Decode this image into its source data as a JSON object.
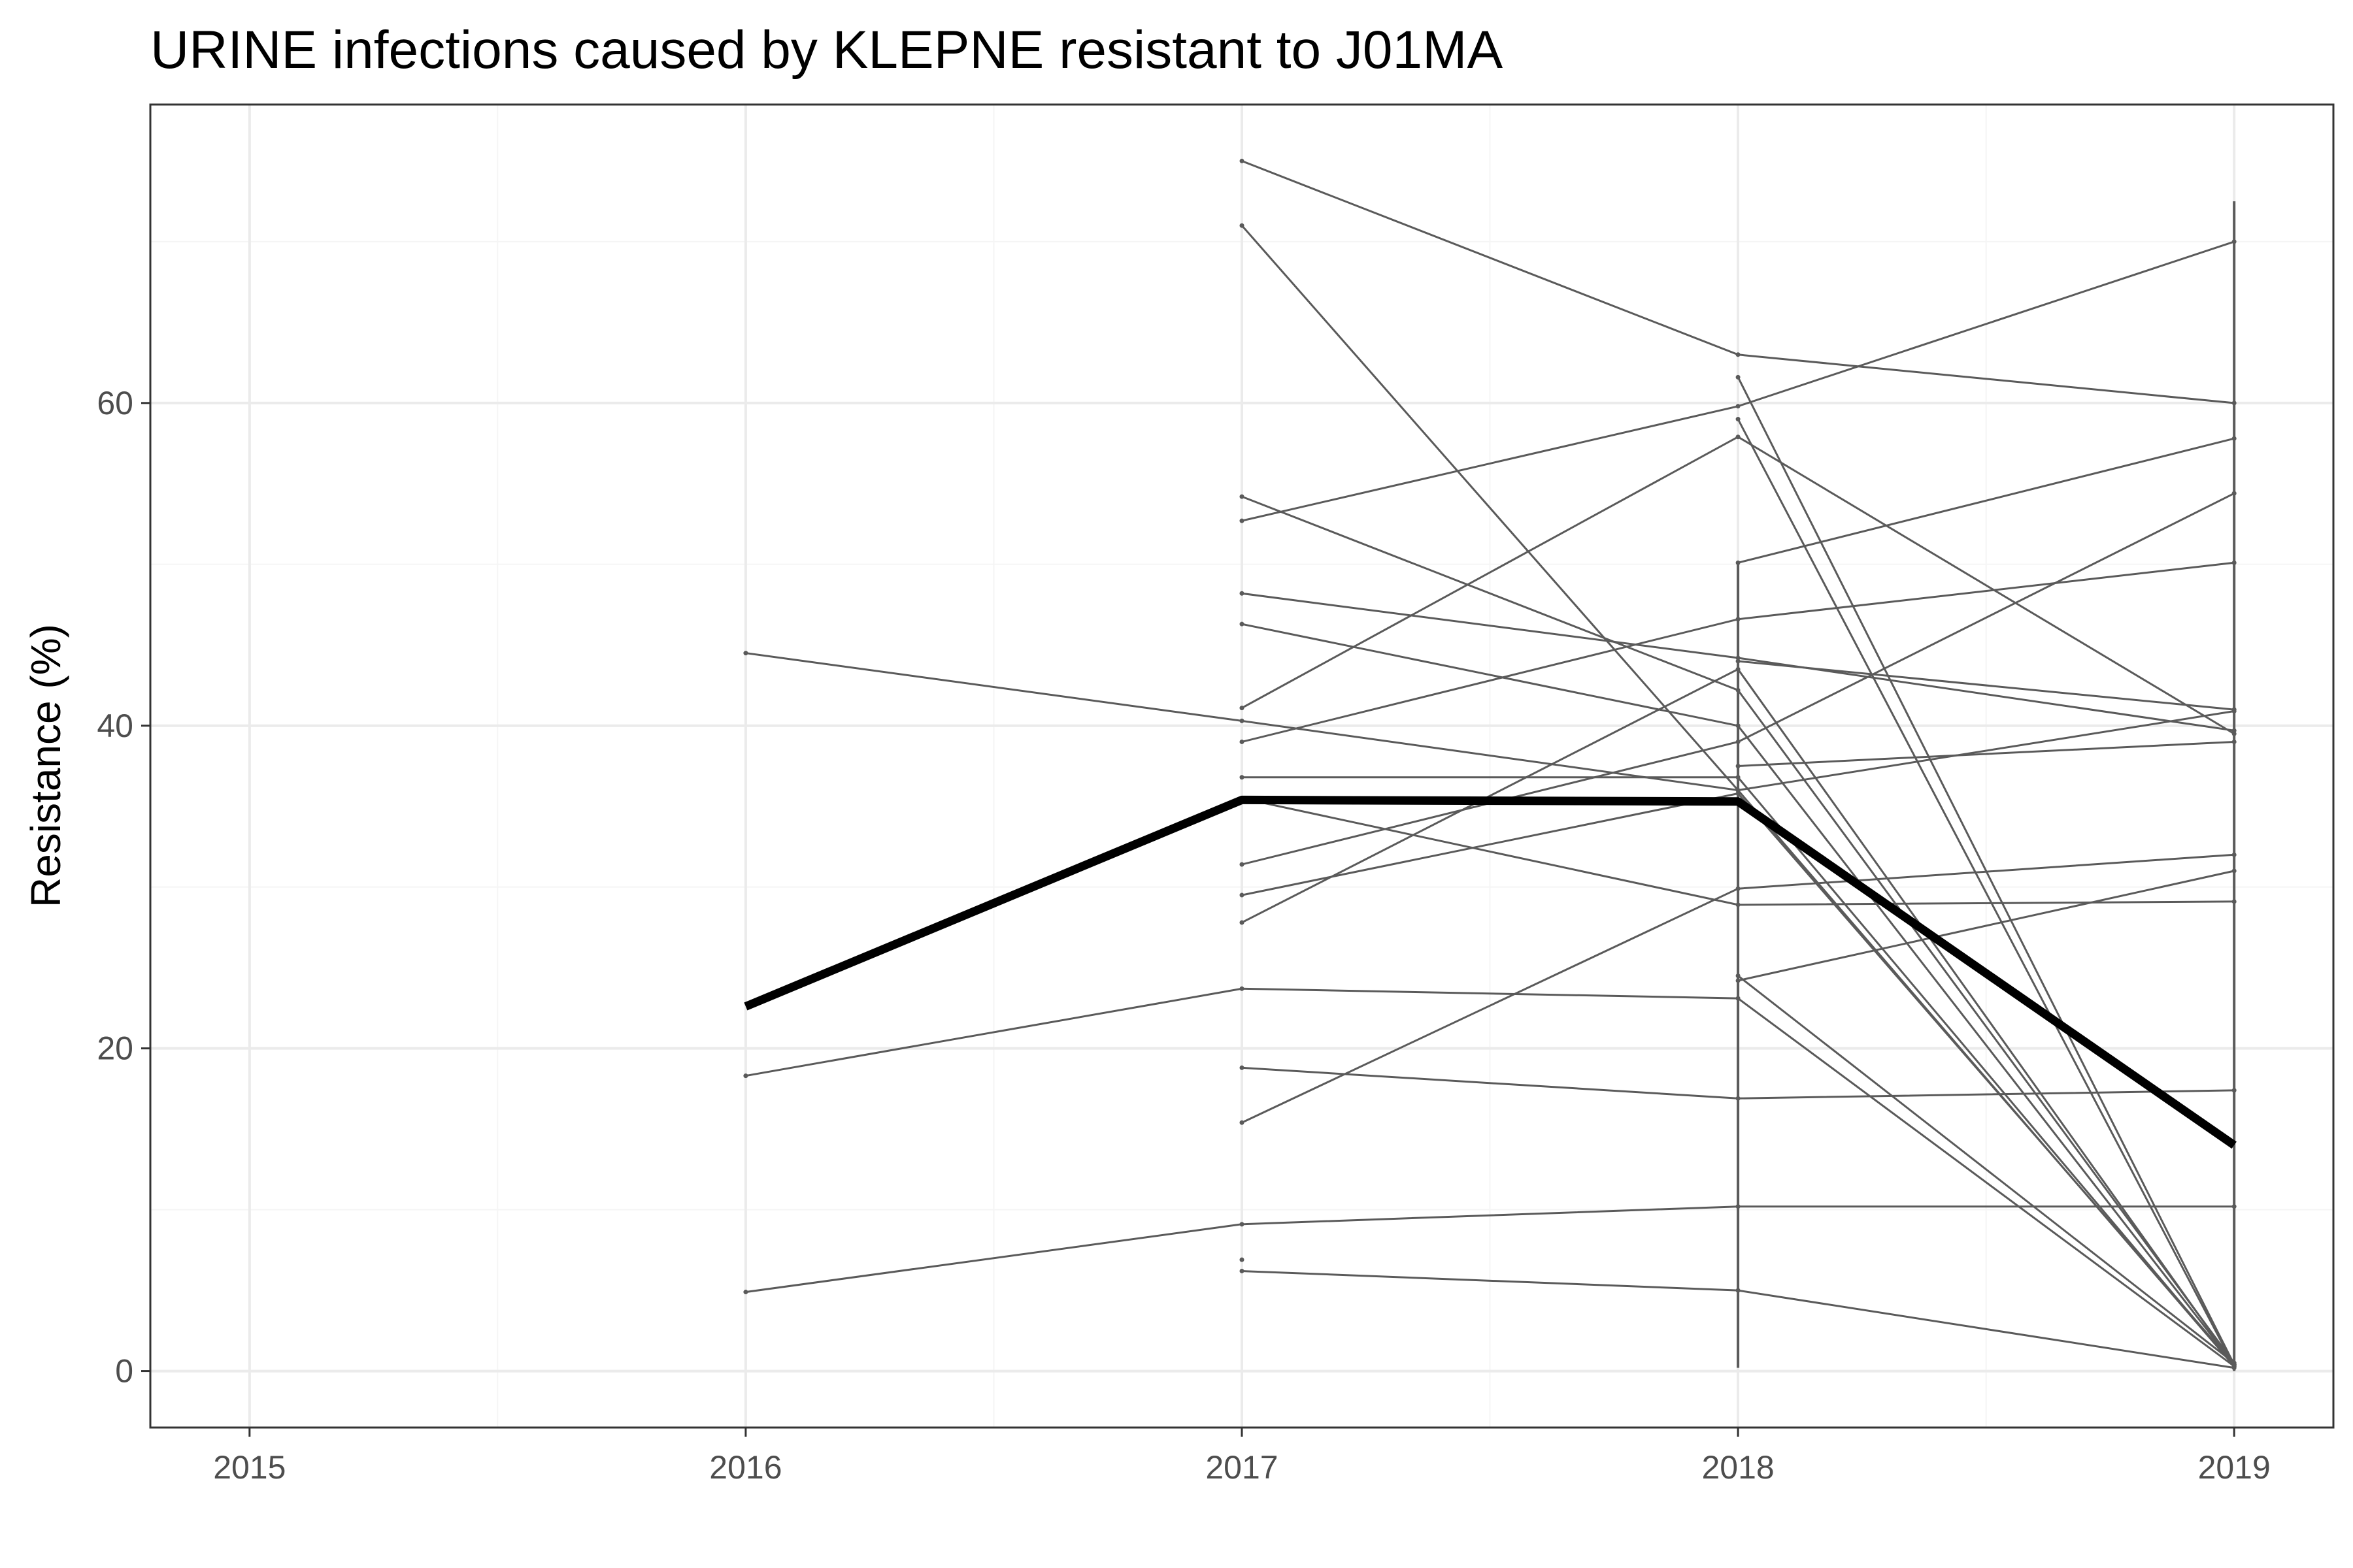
{
  "chart_data": {
    "type": "line",
    "title": "URINE infections caused by KLEPNE resistant to J01MA",
    "xlabel": "",
    "ylabel": "Resistance (%)",
    "xlim": [
      2014.8,
      2019.2
    ],
    "ylim": [
      -3.5,
      78.5
    ],
    "x_ticks": [
      2015,
      2016,
      2017,
      2018,
      2019
    ],
    "x_tick_labels": [
      "2015",
      "2016",
      "2017",
      "2018",
      "2019"
    ],
    "y_ticks": [
      0,
      20,
      40,
      60
    ],
    "y_tick_labels": [
      "0",
      "20",
      "40",
      "60"
    ],
    "grid": true,
    "legend": "none",
    "colors": {
      "series_line": "#5a5a5a",
      "summary_line": "#000000",
      "grid_major": "#ebebeb",
      "grid_minor": "#f5f5f5",
      "panel_border": "#333333",
      "tick_text": "#4d4d4d"
    },
    "series": [
      {
        "x": [
          2016,
          2017,
          2018,
          2019
        ],
        "y": [
          44.5,
          40.3,
          36.0,
          40.9
        ]
      },
      {
        "x": [
          2016,
          2017,
          2018,
          2019
        ],
        "y": [
          18.3,
          23.7,
          23.1,
          0.3
        ]
      },
      {
        "x": [
          2016,
          2017,
          2018,
          2019
        ],
        "y": [
          4.9,
          9.1,
          10.2,
          10.2
        ]
      },
      {
        "x": [
          2017,
          2018,
          2019
        ],
        "y": [
          75.0,
          63.0,
          60.0
        ]
      },
      {
        "x": [
          2017,
          2018,
          2019
        ],
        "y": [
          71.0,
          36.0,
          0.3
        ]
      },
      {
        "x": [
          2017,
          2018,
          2019
        ],
        "y": [
          54.2,
          42.2,
          0.5
        ]
      },
      {
        "x": [
          2017,
          2018,
          2019
        ],
        "y": [
          52.7,
          59.8,
          70.0
        ]
      },
      {
        "x": [
          2017,
          2018,
          2019
        ],
        "y": [
          48.2,
          44.2,
          39.7
        ]
      },
      {
        "x": [
          2017,
          2018,
          2019
        ],
        "y": [
          46.3,
          40.0,
          0.4
        ]
      },
      {
        "x": [
          2017,
          2018,
          2019
        ],
        "y": [
          41.1,
          57.9,
          39.5
        ]
      },
      {
        "x": [
          2017,
          2018,
          2019
        ],
        "y": [
          39.0,
          46.6,
          50.1
        ]
      },
      {
        "x": [
          2017,
          2018,
          2019
        ],
        "y": [
          36.8,
          36.8,
          0.3
        ]
      },
      {
        "x": [
          2017,
          2018,
          2019
        ],
        "y": [
          31.4,
          39.0,
          54.4
        ]
      },
      {
        "x": [
          2017,
          2018,
          2019
        ],
        "y": [
          29.5,
          35.8,
          0.4
        ]
      },
      {
        "x": [
          2017,
          2018,
          2019
        ],
        "y": [
          27.8,
          43.5,
          0.4
        ]
      },
      {
        "x": [
          2017,
          2018,
          2019
        ],
        "y": [
          35.5,
          28.9,
          29.1
        ]
      },
      {
        "x": [
          2017,
          2018,
          2019
        ],
        "y": [
          18.8,
          16.9,
          17.4
        ]
      },
      {
        "x": [
          2017,
          2018,
          2019
        ],
        "y": [
          15.4,
          29.9,
          32.0
        ]
      },
      {
        "x": [
          2017,
          2018,
          2019
        ],
        "y": [
          6.2,
          5.0,
          0.2
        ]
      },
      {
        "x": [
          2018,
          2019
        ],
        "y": [
          61.6,
          0.4
        ]
      },
      {
        "x": [
          2018,
          2019
        ],
        "y": [
          59.0,
          0.3
        ]
      },
      {
        "x": [
          2018,
          2019
        ],
        "y": [
          50.1,
          57.8
        ]
      },
      {
        "x": [
          2018,
          2019
        ],
        "y": [
          44.0,
          41.0
        ]
      },
      {
        "x": [
          2018,
          2019
        ],
        "y": [
          37.5,
          39.0
        ]
      },
      {
        "x": [
          2018,
          2019
        ],
        "y": [
          24.5,
          0.5
        ]
      },
      {
        "x": [
          2018,
          2019
        ],
        "y": [
          24.2,
          31.0
        ]
      }
    ],
    "summary_series": {
      "x": [
        2016,
        2017,
        2018,
        2019
      ],
      "y": [
        22.6,
        35.4,
        35.3,
        14.0
      ]
    },
    "extra_points": [
      {
        "x": 2017,
        "y": 6.9
      }
    ],
    "range_bars": [
      {
        "x": 2018,
        "ymin": 0.2,
        "ymax": 50.1
      },
      {
        "x": 2019,
        "ymin": 0.0,
        "ymax": 72.5
      }
    ]
  }
}
